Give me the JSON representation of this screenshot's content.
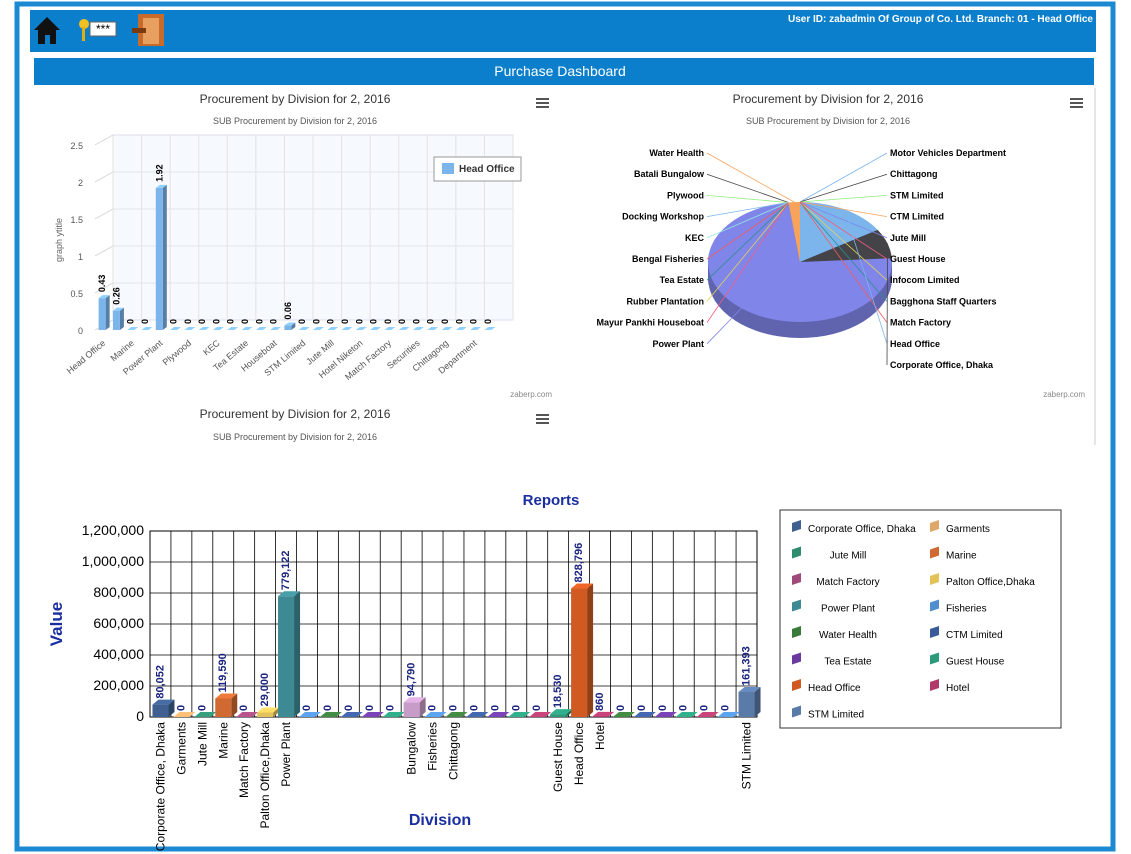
{
  "header": {
    "user_info": "User ID: zabadmin Of Group of Co. Ltd.  Branch: 01 - Head Office",
    "title": "Purchase Dashboard",
    "key_icon_text": "***"
  },
  "chart_data": [
    {
      "type": "bar3d",
      "title": "Procurement by Division for 2, 2016",
      "subtitle": "SUB Procurement by Division for 2, 2016",
      "y_label": "graph ytitle",
      "categories": [
        "Head Office",
        null,
        "Marine",
        null,
        "Power Plant",
        null,
        "Plywood",
        null,
        "KEC",
        null,
        "Tea Estate",
        null,
        "Houseboat",
        null,
        "STM Limited",
        null,
        "Jute Mill",
        null,
        "Hotel Niketon",
        null,
        "Match Factory",
        null,
        "Securities",
        null,
        "Chittagong",
        null,
        "Department",
        null
      ],
      "series": [
        {
          "name": "Head Office",
          "color": "#7cb5ec",
          "values": [
            0.43,
            0.26,
            0,
            0,
            1.92,
            0,
            0,
            0,
            0,
            0,
            0,
            0,
            0,
            0.06,
            0,
            0,
            0,
            0,
            0,
            0,
            0,
            0,
            0,
            0,
            0,
            0,
            0,
            0
          ]
        }
      ],
      "ylim": [
        0,
        2.5
      ],
      "yticks": [
        0,
        0.5,
        1,
        1.5,
        2,
        2.5
      ],
      "grid": true,
      "legend": "top-right",
      "credit": "zaberp.com"
    },
    {
      "type": "pie",
      "title": "Procurement by Division for 2, 2016",
      "subtitle": "SUB Procurement by Division for 2, 2016",
      "categories": [
        "Motor Vehicles Department",
        "Chittagong",
        "STM Limited",
        "CTM Limited",
        "Jute Mill",
        "Guest House",
        "Infocom Limited",
        "Bagghona Staff Quarters",
        "Match Factory",
        "Head Office",
        "Corporate Office, Dhaka",
        "Power Plant",
        "Mayur Pankhi Houseboat",
        "Rubber Plantation",
        "Tea Estate",
        "Bengal Fisheries",
        "KEC",
        "Docking Workshop",
        "Plywood",
        "Batali Bungalow",
        "Water Health"
      ],
      "values": [
        0,
        0,
        0,
        0,
        0,
        0,
        0,
        0,
        0,
        16,
        8,
        74,
        0,
        0,
        0,
        0,
        0,
        0,
        0,
        0,
        2
      ],
      "colors": [
        "#7cb5ec",
        "#434348",
        "#90ed7d",
        "#f7a35c",
        "#8085e9",
        "#f15c80",
        "#e4d354",
        "#2b908f",
        "#f45b5b",
        "#7cb5ec",
        "#434348",
        "#8085e9",
        "#f15c80",
        "#e4d354",
        "#2b908f",
        "#f45b5b",
        "#91e8e1",
        "#7cb5ec",
        "#90ed7d",
        "#434348",
        "#f7a35c"
      ],
      "credit": "zaberp.com"
    },
    {
      "title": "Procurement by Division for 2, 2016",
      "subtitle": "SUB Procurement by Division for 2, 2016"
    },
    {
      "type": "bar3d",
      "title": "Reports",
      "x_label": "Division",
      "y_label": "Value",
      "categories": [
        "Corporate Office, Dhaka",
        "Garments",
        "Jute Mill",
        "Marine",
        "Match Factory",
        "Palton Office,Dhaka",
        "Power Plant",
        null,
        null,
        null,
        null,
        null,
        "Bungalow",
        "Fisheries",
        "Chittagong",
        null,
        null,
        null,
        null,
        "Guest House",
        "Head Office",
        "Hotel",
        null,
        null,
        null,
        null,
        null,
        null,
        "STM Limited"
      ],
      "values": [
        80052,
        0,
        0,
        119590,
        0,
        29000,
        779122,
        0,
        0,
        0,
        0,
        0,
        94790,
        0,
        0,
        0,
        0,
        0,
        0,
        18530,
        828796,
        860,
        0,
        0,
        0,
        0,
        0,
        0,
        161393
      ],
      "value_labels": [
        "80,052",
        "0",
        "0",
        "119,590",
        "0",
        "29,000",
        "779,122",
        "0",
        "0",
        "0",
        "0",
        "0",
        "94,790",
        "0",
        "0",
        "0",
        "0",
        "0",
        "0",
        "18,530",
        "828,796",
        "860",
        "0",
        "0",
        "0",
        "0",
        "0",
        "0",
        "161,393"
      ],
      "colors": [
        "#3e5f8f",
        "#e0a868",
        "#2e8b6e",
        "#d06a32",
        "#a04a7a",
        "#e3c25a",
        "#3e8a94",
        "#4f8fd0",
        "#3a7a3a",
        "#3a5a9a",
        "#6a3aa0",
        "#2a9a7a",
        "#c89cc8",
        "#4f8fd0",
        "#3a7a3a",
        "#3a5a9a",
        "#6a3aa0",
        "#2a9a7a",
        "#b03a6a",
        "#2a9a7a",
        "#d05a22",
        "#b03a6a",
        "#3a7a3a",
        "#3a5a9a",
        "#6a3aa0",
        "#2a9a7a",
        "#b03a6a",
        "#4f8fd0",
        "#5a7aa8"
      ],
      "ylim": [
        0,
        1200000
      ],
      "yticks": [
        0,
        {
          "value": 200000,
          "label": "200,000"
        },
        {
          "value": 400000,
          "label": "400,000"
        },
        {
          "value": 600000,
          "label": "600,000"
        },
        {
          "value": 800000,
          "label": "800,000"
        },
        {
          "value": 1000000,
          "label": "1,000,000"
        },
        {
          "value": 1200000,
          "label": "1,200,000"
        }
      ],
      "grid": true,
      "legend": [
        {
          "name": "Corporate Office, Dhaka",
          "color": "#3e5f8f"
        },
        {
          "name": "Garments",
          "color": "#e0a868"
        },
        {
          "name": "Jute Mill",
          "color": "#2e8b6e"
        },
        {
          "name": "Marine",
          "color": "#d06a32"
        },
        {
          "name": "Match Factory",
          "color": "#a04a7a"
        },
        {
          "name": "Palton Office,Dhaka",
          "color": "#e3c25a"
        },
        {
          "name": "Power Plant",
          "color": "#3e8a94"
        },
        {
          "name": "Fisheries",
          "color": "#4f8fd0"
        },
        {
          "name": "Water Health",
          "color": "#3a7a3a"
        },
        {
          "name": "CTM Limited",
          "color": "#3a5a9a"
        },
        {
          "name": "Tea Estate",
          "color": "#6a3aa0"
        },
        {
          "name": "Guest House",
          "color": "#2a9a7a"
        },
        {
          "name": "Head Office",
          "color": "#d05a22"
        },
        {
          "name": "Hotel",
          "color": "#b03a6a"
        },
        {
          "name": "STM Limited",
          "color": "#5a7aa8"
        }
      ]
    }
  ]
}
